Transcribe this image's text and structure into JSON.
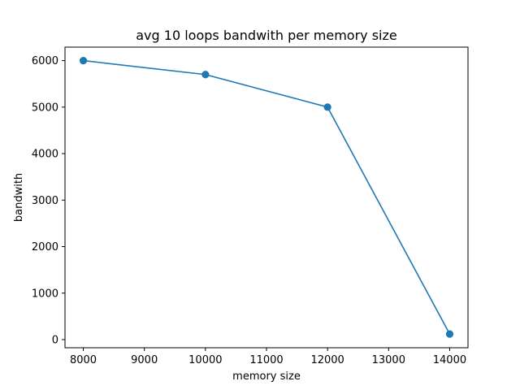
{
  "chart_data": {
    "type": "line",
    "title": "avg 10 loops bandwith per memory size",
    "xlabel": "memory size",
    "ylabel": "bandwith",
    "x": [
      8000,
      10000,
      12000,
      14000
    ],
    "series": [
      {
        "values": [
          6000,
          5700,
          5000,
          120
        ],
        "color": "#1f77b4",
        "marker": "circle"
      }
    ],
    "xlim": [
      7700,
      14300
    ],
    "ylim": [
      -175,
      6290
    ],
    "xticks": [
      8000,
      9000,
      10000,
      11000,
      12000,
      13000,
      14000
    ],
    "yticks": [
      0,
      1000,
      2000,
      3000,
      4000,
      5000,
      6000
    ],
    "grid": false,
    "legend": "none"
  }
}
